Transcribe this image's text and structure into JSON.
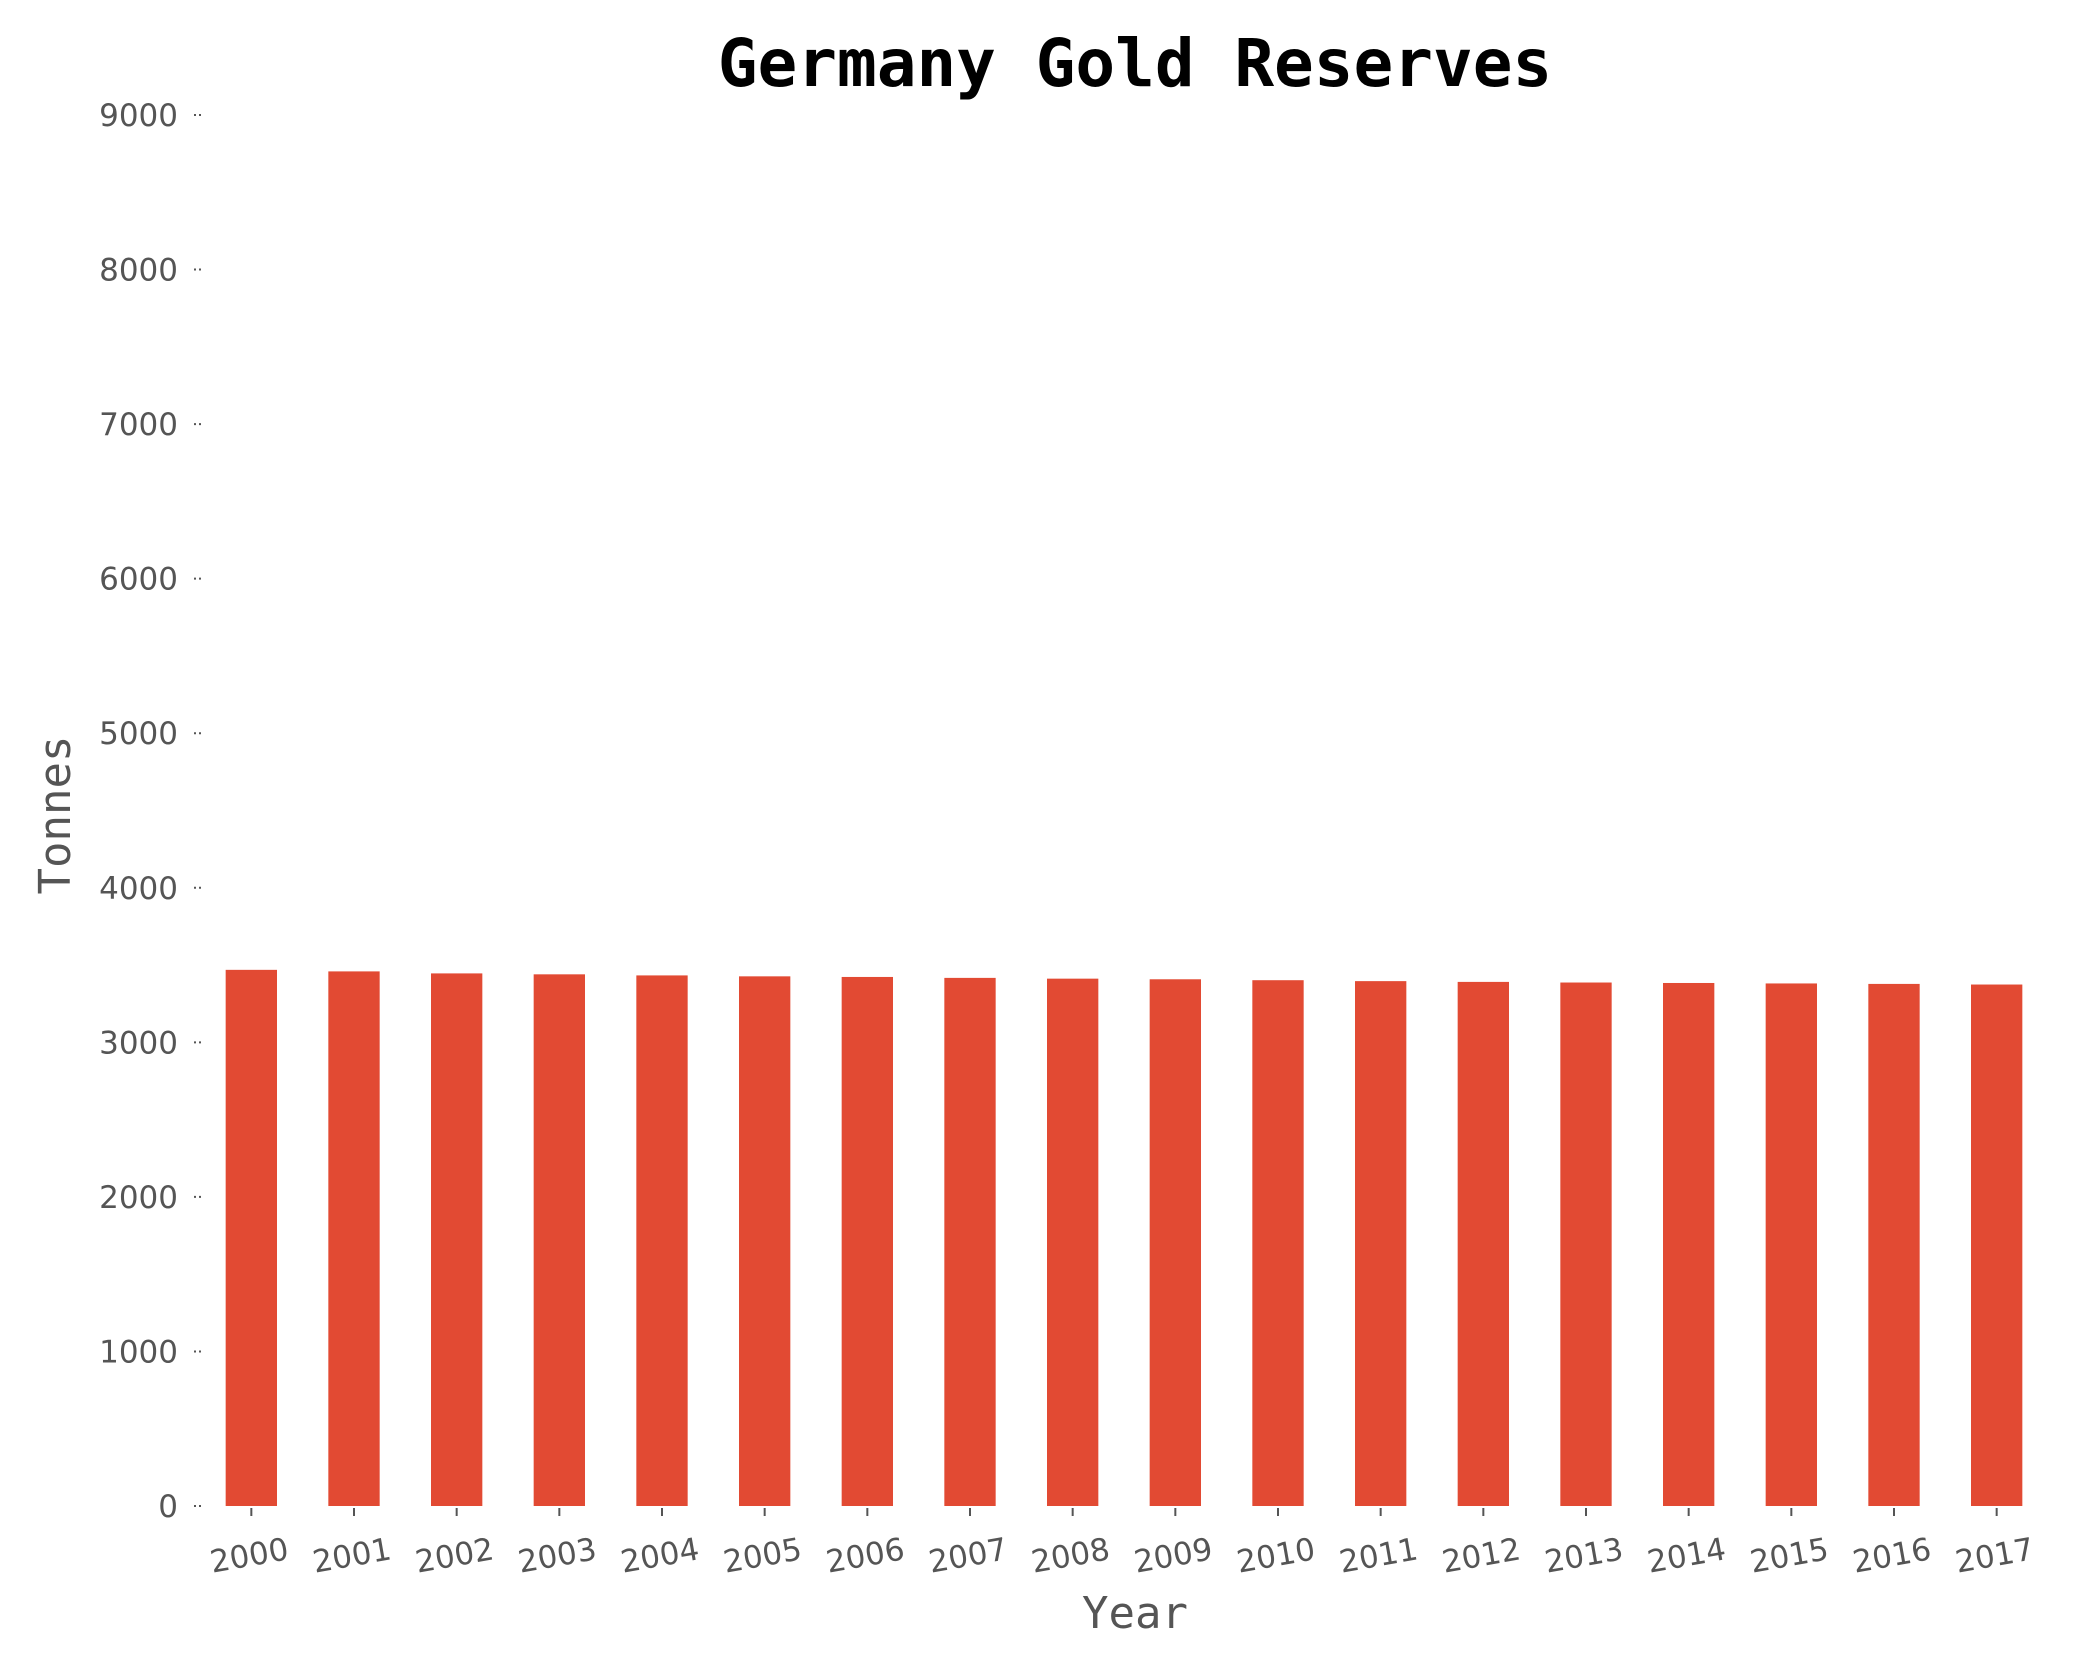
{
  "chart_data": {
    "type": "bar",
    "title": "Germany Gold Reserves",
    "xlabel": "Year",
    "ylabel": "Tonnes",
    "categories": [
      "2000",
      "2001",
      "2002",
      "2003",
      "2004",
      "2005",
      "2006",
      "2007",
      "2008",
      "2009",
      "2010",
      "2011",
      "2012",
      "2013",
      "2014",
      "2015",
      "2016",
      "2017"
    ],
    "values": [
      3469,
      3459,
      3446,
      3440,
      3433,
      3427,
      3423,
      3417,
      3412,
      3408,
      3402,
      3396,
      3391,
      3387,
      3384,
      3381,
      3378,
      3374
    ],
    "ylim": [
      0,
      9000
    ],
    "yticks": [
      "0",
      "1000",
      "2000",
      "3000",
      "4000",
      "5000",
      "6000",
      "7000",
      "8000",
      "9000"
    ],
    "grid": false,
    "colors": {
      "bar": "#e24a33",
      "tick": "#555555",
      "title": "#000000"
    }
  }
}
